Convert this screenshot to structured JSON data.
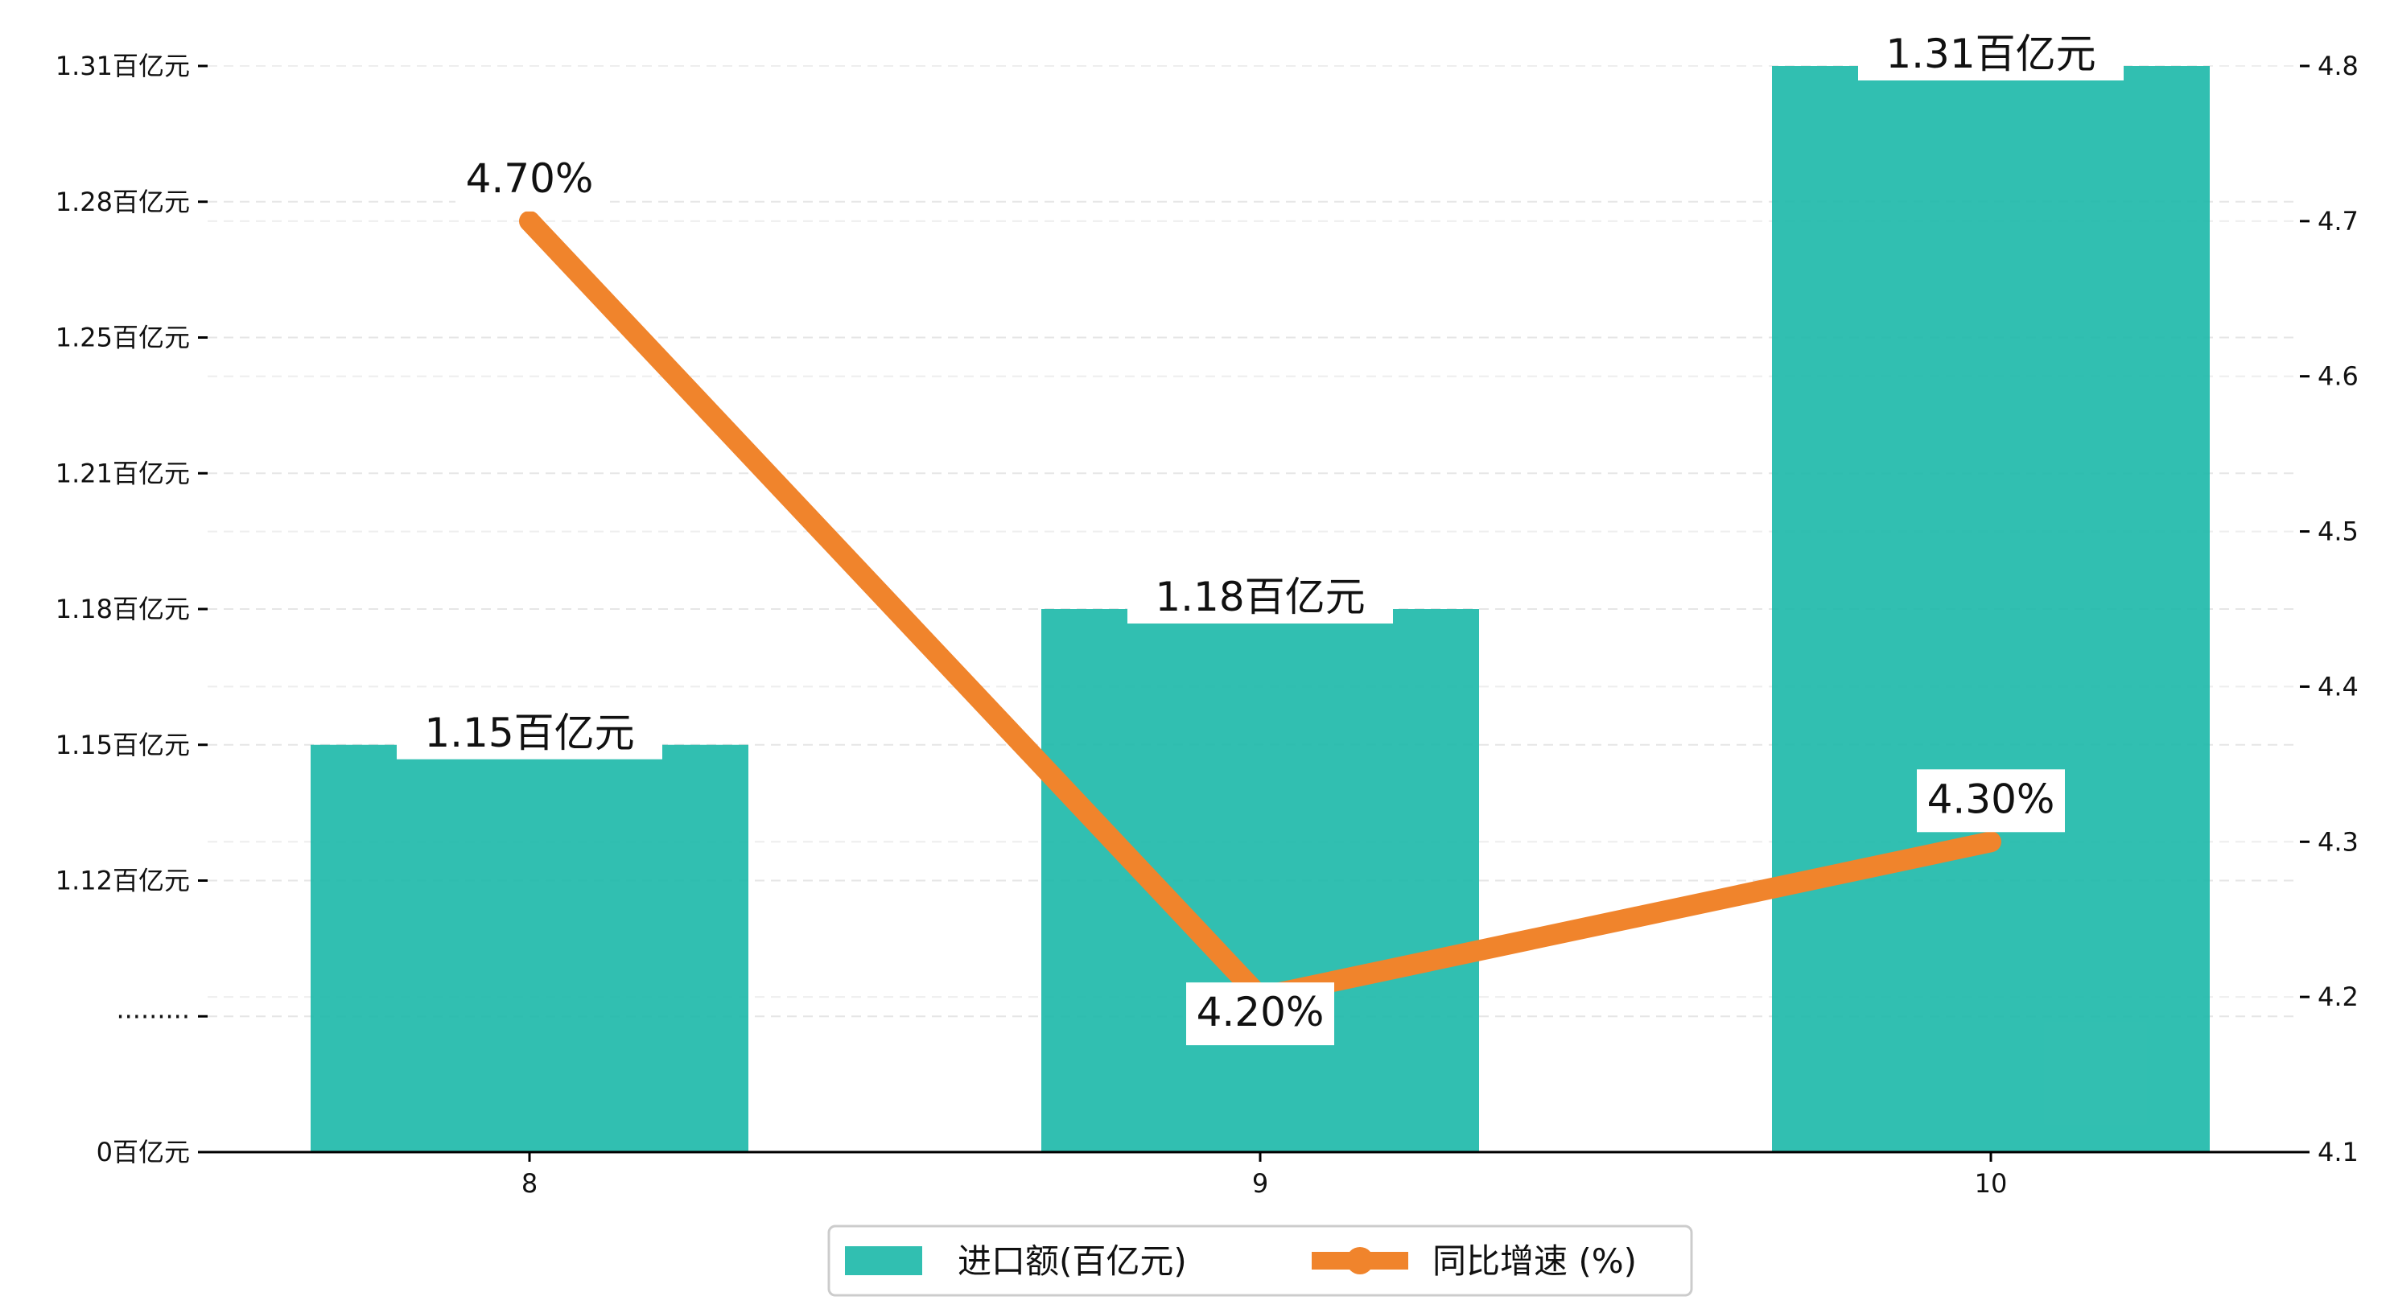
{
  "chart_data": {
    "type": "bar+line",
    "title": "",
    "categories": [
      "8",
      "9",
      "10"
    ],
    "series": [
      {
        "name": "进口额(百亿元)",
        "kind": "bar",
        "axis": "left",
        "values": [
          1.15,
          1.18,
          1.31
        ],
        "labels": [
          "1.15百亿元",
          "1.18百亿元",
          "1.31百亿元"
        ],
        "color": "#1bb8a8"
      },
      {
        "name": "同比增速 (%)",
        "kind": "line",
        "axis": "right",
        "values": [
          4.7,
          4.2,
          4.3
        ],
        "labels": [
          "4.70%",
          "4.20%",
          "4.30%"
        ],
        "color": "#f0842c"
      }
    ],
    "left_axis": {
      "ticks": [
        "0百亿元",
        "·········",
        "1.12百亿元",
        "1.15百亿元",
        "1.18百亿元",
        "1.21百亿元",
        "1.25百亿元",
        "1.28百亿元",
        "1.31百亿元"
      ],
      "tick_values": [
        0,
        1.09,
        1.12,
        1.15,
        1.18,
        1.21,
        1.25,
        1.28,
        1.31
      ],
      "broken": true
    },
    "right_axis": {
      "ticks": [
        "4.1",
        "4.2",
        "4.3",
        "4.4",
        "4.5",
        "4.6",
        "4.7",
        "4.8"
      ],
      "ylim": [
        4.1,
        4.8
      ]
    },
    "grid": true,
    "legend_position": "bottom-center"
  }
}
